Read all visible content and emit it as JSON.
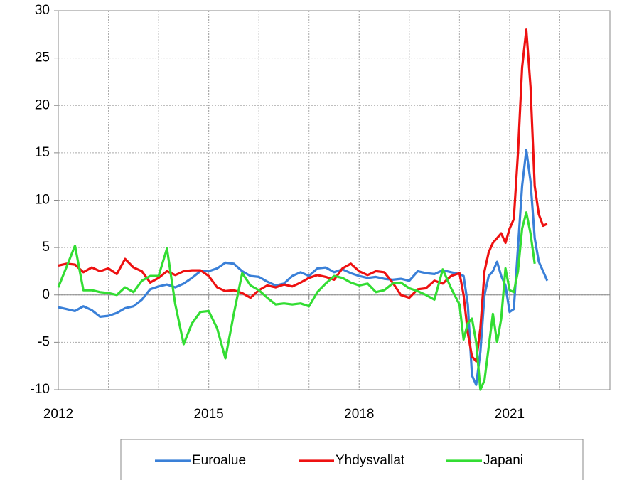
{
  "chart_data": {
    "type": "line",
    "x": [
      2012,
      2012.167,
      2012.333,
      2012.5,
      2012.667,
      2012.833,
      2013,
      2013.167,
      2013.333,
      2013.5,
      2013.667,
      2013.833,
      2014,
      2014.167,
      2014.333,
      2014.5,
      2014.667,
      2014.833,
      2015,
      2015.167,
      2015.333,
      2015.5,
      2015.667,
      2015.833,
      2016,
      2016.167,
      2016.333,
      2016.5,
      2016.667,
      2016.833,
      2017,
      2017.167,
      2017.333,
      2017.5,
      2017.667,
      2017.833,
      2018,
      2018.167,
      2018.333,
      2018.5,
      2018.667,
      2018.833,
      2019,
      2019.167,
      2019.333,
      2019.5,
      2019.667,
      2019.833,
      2020,
      2020.083,
      2020.167,
      2020.25,
      2020.333,
      2020.417,
      2020.5,
      2020.583,
      2020.667,
      2020.75,
      2020.833,
      2020.917,
      2021,
      2021.083,
      2021.167,
      2021.25,
      2021.333,
      2021.417,
      2021.5,
      2021.583,
      2021.667,
      2021.75
    ],
    "series": [
      {
        "name": "Euroalue",
        "color": "#3a80d8",
        "values": [
          -1.3,
          -1.5,
          -1.7,
          -1.2,
          -1.6,
          -2.3,
          -2.2,
          -1.9,
          -1.4,
          -1.2,
          -0.5,
          0.6,
          0.9,
          1.1,
          0.8,
          1.2,
          1.8,
          2.5,
          2.5,
          2.8,
          3.4,
          3.3,
          2.5,
          2.0,
          1.9,
          1.4,
          1.0,
          1.2,
          2.0,
          2.4,
          2.0,
          2.8,
          2.9,
          2.4,
          2.7,
          2.3,
          2.0,
          1.8,
          1.9,
          1.7,
          1.6,
          1.7,
          1.5,
          2.5,
          2.3,
          2.2,
          2.6,
          2.4,
          2.2,
          2.0,
          -1.0,
          -8.5,
          -9.5,
          -6.0,
          0.0,
          2.0,
          2.5,
          3.5,
          2.0,
          1.0,
          -1.8,
          -1.5,
          5.0,
          11.5,
          15.3,
          12.0,
          6.0,
          3.5,
          2.5,
          1.5
        ]
      },
      {
        "name": "Yhdysvallat",
        "color": "#ee1111",
        "values": [
          3.1,
          3.3,
          3.2,
          2.4,
          2.9,
          2.5,
          2.8,
          2.2,
          3.8,
          2.9,
          2.5,
          1.3,
          1.8,
          2.5,
          2.1,
          2.5,
          2.6,
          2.6,
          2.0,
          0.8,
          0.4,
          0.5,
          0.2,
          -0.3,
          0.5,
          1.0,
          0.8,
          1.1,
          0.9,
          1.3,
          1.8,
          2.1,
          1.9,
          1.6,
          2.8,
          3.3,
          2.5,
          2.1,
          2.5,
          2.4,
          1.3,
          0.0,
          -0.3,
          0.6,
          0.7,
          1.5,
          1.2,
          2.0,
          2.3,
          0.0,
          -4.0,
          -6.5,
          -7.0,
          -3.5,
          2.5,
          4.5,
          5.5,
          6.0,
          6.5,
          5.5,
          7.0,
          8.0,
          15.0,
          24.0,
          28.0,
          22.0,
          11.5,
          8.5,
          7.3,
          7.5
        ]
      },
      {
        "name": "Japani",
        "color": "#33dd33",
        "values": [
          0.8,
          3.0,
          5.2,
          0.5,
          0.5,
          0.3,
          0.2,
          0.0,
          0.8,
          0.3,
          1.5,
          2.0,
          2.0,
          4.9,
          -1.0,
          -5.2,
          -3.0,
          -1.8,
          -1.7,
          -3.5,
          -6.7,
          -2.0,
          2.3,
          1.0,
          0.5,
          -0.3,
          -1.0,
          -0.9,
          -1.0,
          -0.9,
          -1.2,
          0.3,
          1.2,
          2.0,
          1.8,
          1.3,
          1.0,
          1.2,
          0.3,
          0.5,
          1.2,
          1.3,
          0.7,
          0.4,
          0.0,
          -0.5,
          2.7,
          0.7,
          -1.0,
          -4.7,
          -3.0,
          -2.5,
          -5.0,
          -10.0,
          -9.0,
          -5.5,
          -2.0,
          -5.0,
          -2.5,
          2.8,
          0.5,
          0.3,
          2.5,
          7.0,
          8.7,
          6.5,
          3.3,
          null,
          null,
          null
        ]
      }
    ],
    "xlim": [
      2012,
      2023
    ],
    "xticks": [
      2012,
      2015,
      2018,
      2021
    ],
    "ylim": [
      -10,
      30
    ],
    "yticks": [
      -10,
      -5,
      0,
      5,
      10,
      15,
      20,
      25,
      30
    ],
    "grid": true,
    "legend": "bottom"
  }
}
